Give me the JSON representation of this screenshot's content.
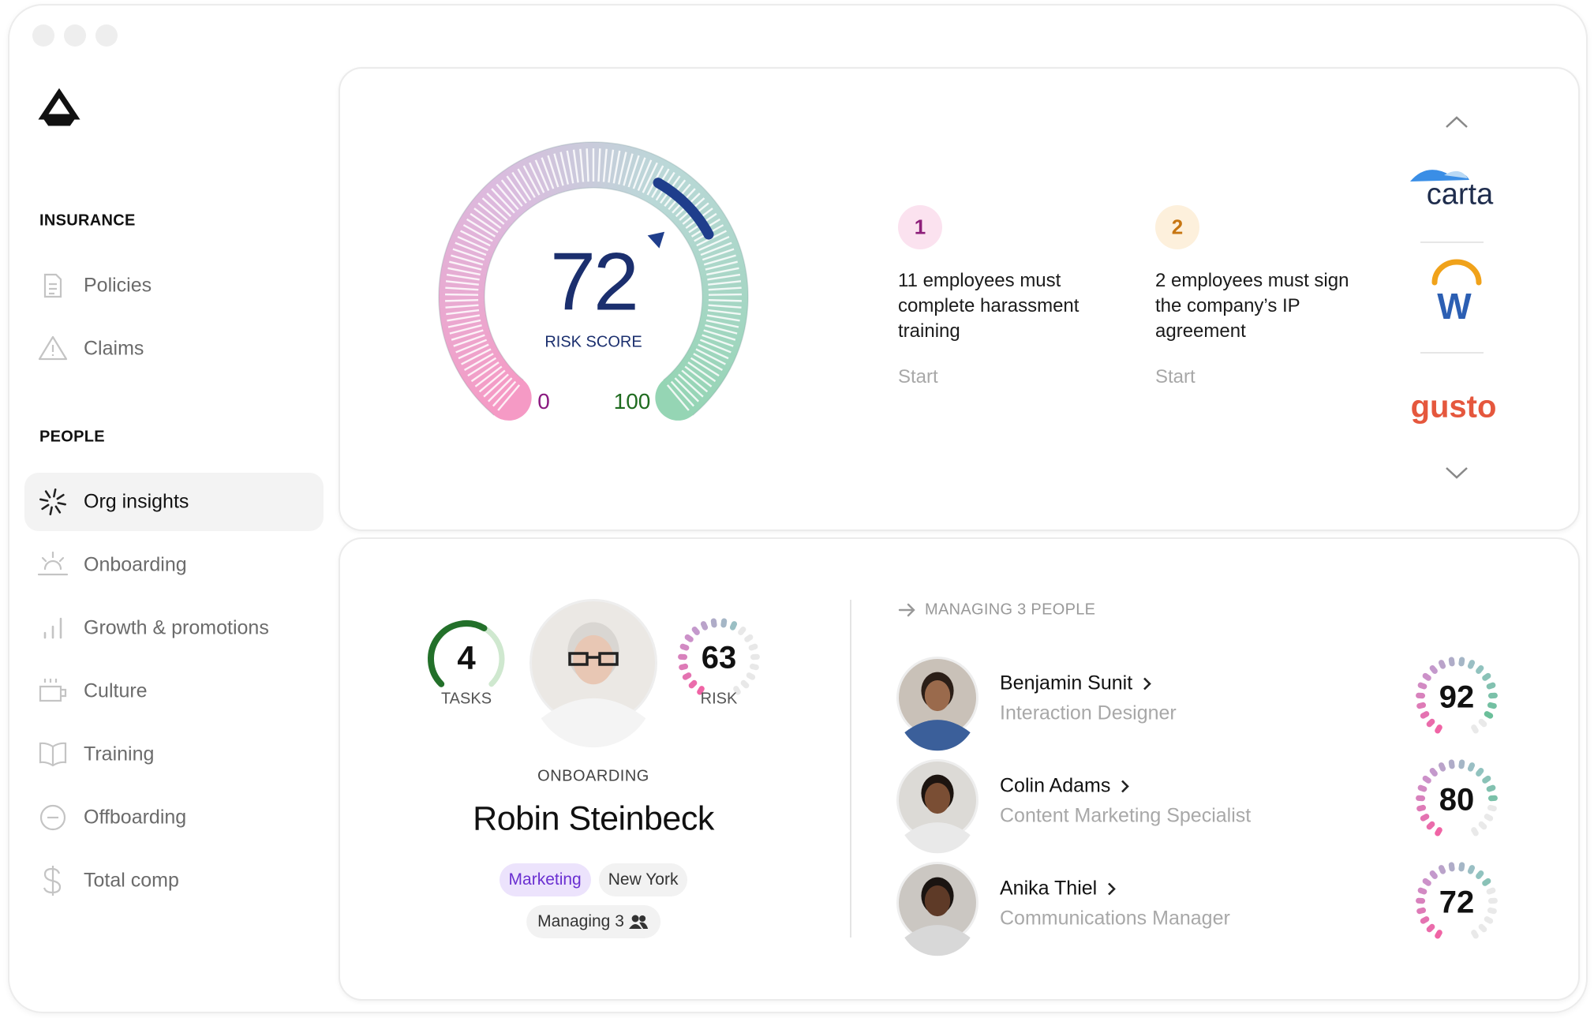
{
  "sidebar": {
    "sections": [
      {
        "title": "INSURANCE",
        "items": [
          {
            "label": "Policies"
          },
          {
            "label": "Claims"
          }
        ]
      },
      {
        "title": "PEOPLE",
        "items": [
          {
            "label": "Org insights",
            "active": true
          },
          {
            "label": "Onboarding"
          },
          {
            "label": "Growth & promotions"
          },
          {
            "label": "Culture"
          },
          {
            "label": "Training"
          },
          {
            "label": "Offboarding"
          },
          {
            "label": "Total comp"
          }
        ]
      }
    ]
  },
  "risk": {
    "score": 72,
    "label": "RISK SCORE",
    "min": 0,
    "max": 100
  },
  "tasks": [
    {
      "number": 1,
      "text": "11 employees must complete harassment training",
      "action": "Start"
    },
    {
      "number": 2,
      "text": "2 employees must sign the company’s IP agreement",
      "action": "Start"
    }
  ],
  "integrations": [
    "carta",
    "W",
    "gusto"
  ],
  "profile": {
    "tasks": 4,
    "tasks_label": "TASKS",
    "risk": 63,
    "risk_label": "RISK",
    "status": "ONBOARDING",
    "name": "Robin Steinbeck",
    "tags": [
      "Marketing",
      "New York"
    ],
    "managing": "Managing 3"
  },
  "reports": {
    "title": "MANAGING 3 PEOPLE",
    "people": [
      {
        "name": "Benjamin Sunit",
        "title": "Interaction Designer",
        "score": 92
      },
      {
        "name": "Colin Adams",
        "title": "Content Marketing Specialist",
        "score": 80
      },
      {
        "name": "Anika Thiel",
        "title": "Communications Manager",
        "score": 72
      }
    ]
  }
}
